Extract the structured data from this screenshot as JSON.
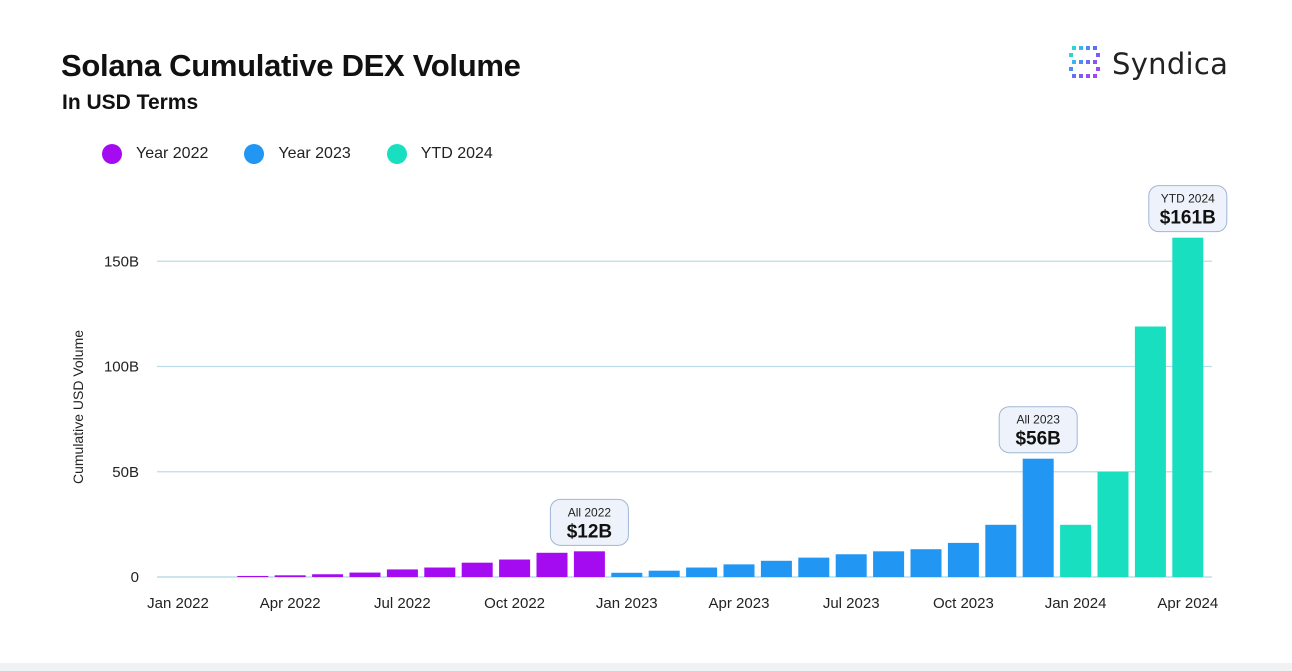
{
  "header": {
    "title": "Solana Cumulative DEX Volume",
    "subtitle": "In USD Terms",
    "brand": "Syndica"
  },
  "colors": {
    "year_2022": "#a50bf0",
    "year_2023": "#2196f3",
    "ytd_2024": "#19dfc1",
    "grid": "#b9dde9"
  },
  "chart_data": {
    "type": "bar",
    "title": "Solana Cumulative DEX Volume",
    "subtitle": "In USD Terms",
    "xlabel": "",
    "ylabel": "Cumulative USD Volume",
    "ylim": [
      0,
      165
    ],
    "yticks": [
      {
        "value": 0,
        "label": "0"
      },
      {
        "value": 50,
        "label": "50B"
      },
      {
        "value": 100,
        "label": "100B"
      },
      {
        "value": 150,
        "label": "150B"
      }
    ],
    "y_unit": "B USD",
    "grid": true,
    "legend_position": "top-left",
    "legend": [
      {
        "name": "Year 2022",
        "color": "#a50bf0"
      },
      {
        "name": "Year 2023",
        "color": "#2196f3"
      },
      {
        "name": "YTD 2024",
        "color": "#19dfc1"
      }
    ],
    "xtick_labels": [
      "Jan 2022",
      "Apr 2022",
      "Jul 2022",
      "Oct 2022",
      "Jan 2023",
      "Apr 2023",
      "Jul 2023",
      "Oct 2023",
      "Jan 2024",
      "Apr 2024"
    ],
    "bars": [
      {
        "month": "Jan 2022",
        "series": "Year 2022",
        "value": 0
      },
      {
        "month": "Feb 2022",
        "series": "Year 2022",
        "value": 0
      },
      {
        "month": "Mar 2022",
        "series": "Year 2022",
        "value": 0.5
      },
      {
        "month": "Apr 2022",
        "series": "Year 2022",
        "value": 0.8
      },
      {
        "month": "May 2022",
        "series": "Year 2022",
        "value": 1.3
      },
      {
        "month": "Jun 2022",
        "series": "Year 2022",
        "value": 2.1
      },
      {
        "month": "Jul 2022",
        "series": "Year 2022",
        "value": 3.6
      },
      {
        "month": "Aug 2022",
        "series": "Year 2022",
        "value": 4.5
      },
      {
        "month": "Sep 2022",
        "series": "Year 2022",
        "value": 6.8
      },
      {
        "month": "Oct 2022",
        "series": "Year 2022",
        "value": 8.3
      },
      {
        "month": "Nov 2022",
        "series": "Year 2022",
        "value": 11.5
      },
      {
        "month": "Dec 2022",
        "series": "Year 2022",
        "value": 12.2
      },
      {
        "month": "Jan 2023",
        "series": "Year 2023",
        "value": 2.0
      },
      {
        "month": "Feb 2023",
        "series": "Year 2023",
        "value": 3.0
      },
      {
        "month": "Mar 2023",
        "series": "Year 2023",
        "value": 4.5
      },
      {
        "month": "Apr 2023",
        "series": "Year 2023",
        "value": 6.0
      },
      {
        "month": "May 2023",
        "series": "Year 2023",
        "value": 7.7
      },
      {
        "month": "Jun 2023",
        "series": "Year 2023",
        "value": 9.2
      },
      {
        "month": "Jul 2023",
        "series": "Year 2023",
        "value": 10.8
      },
      {
        "month": "Aug 2023",
        "series": "Year 2023",
        "value": 12.2
      },
      {
        "month": "Sep 2023",
        "series": "Year 2023",
        "value": 13.2
      },
      {
        "month": "Oct 2023",
        "series": "Year 2023",
        "value": 16.2
      },
      {
        "month": "Nov 2023",
        "series": "Year 2023",
        "value": 24.8
      },
      {
        "month": "Dec 2023",
        "series": "Year 2023",
        "value": 56.2
      },
      {
        "month": "Jan 2024",
        "series": "YTD 2024",
        "value": 24.8
      },
      {
        "month": "Feb 2024",
        "series": "YTD 2024",
        "value": 50.0
      },
      {
        "month": "Mar 2024",
        "series": "YTD 2024",
        "value": 119.0
      },
      {
        "month": "Apr 2024",
        "series": "YTD 2024",
        "value": 161.2
      }
    ],
    "annotations": [
      {
        "bar_month": "Dec 2022",
        "label": "All 2022",
        "value_text": "$12B"
      },
      {
        "bar_month": "Dec 2023",
        "label": "All 2023",
        "value_text": "$56B"
      },
      {
        "bar_month": "Apr 2024",
        "label": "YTD 2024",
        "value_text": "$161B"
      }
    ]
  }
}
